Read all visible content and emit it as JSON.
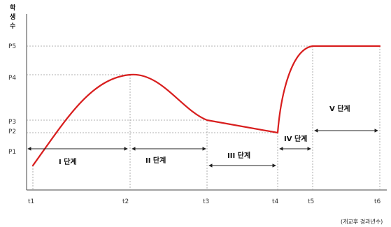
{
  "y_axis_label_chars": [
    "학",
    "생",
    "수"
  ],
  "x_axis_note": "(개교후 경과년수)",
  "y_ticks": [
    "P5",
    "P4",
    "P3",
    "P2",
    "P1"
  ],
  "x_ticks": [
    "t1",
    "t2",
    "t3",
    "t4",
    "t5",
    "t6"
  ],
  "stages": [
    "I 단계",
    "II 단계",
    "III 단계",
    "IV 단계",
    "V 단계"
  ],
  "colors": {
    "curve": "#d81e1e",
    "axis": "#444444",
    "guide": "#999999",
    "arrow": "#222222"
  }
}
